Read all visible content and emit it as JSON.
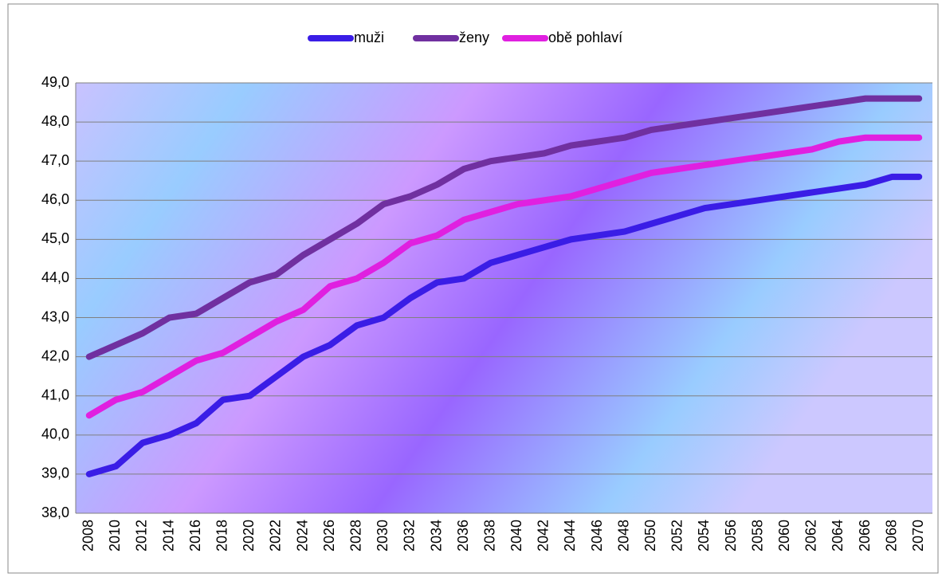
{
  "chart_data": {
    "type": "line",
    "categories": [
      "2008",
      "2010",
      "2012",
      "2014",
      "2016",
      "2018",
      "2020",
      "2022",
      "2024",
      "2026",
      "2028",
      "2030",
      "2032",
      "2034",
      "2036",
      "2038",
      "2040",
      "2042",
      "2044",
      "2046",
      "2048",
      "2050",
      "2052",
      "2054",
      "2056",
      "2058",
      "2060",
      "2062",
      "2064",
      "2066",
      "2068",
      "2070"
    ],
    "series": [
      {
        "name": "muži",
        "color": "#3a1de6",
        "values": [
          39.0,
          39.2,
          39.8,
          40.0,
          40.3,
          40.9,
          41.0,
          41.5,
          42.0,
          42.3,
          42.8,
          43.0,
          43.5,
          43.9,
          44.0,
          44.4,
          44.6,
          44.8,
          45.0,
          45.1,
          45.2,
          45.4,
          45.6,
          45.8,
          45.9,
          46.0,
          46.1,
          46.2,
          46.3,
          46.4,
          46.6,
          46.6
        ]
      },
      {
        "name": "ženy",
        "color": "#7030a0",
        "values": [
          42.0,
          42.3,
          42.6,
          43.0,
          43.1,
          43.5,
          43.9,
          44.1,
          44.6,
          45.0,
          45.4,
          45.9,
          46.1,
          46.4,
          46.8,
          47.0,
          47.1,
          47.2,
          47.4,
          47.5,
          47.6,
          47.8,
          47.9,
          48.0,
          48.1,
          48.2,
          48.3,
          48.4,
          48.5,
          48.6,
          48.6,
          48.6
        ]
      },
      {
        "name": "obě pohlaví",
        "color": "#e020e0",
        "values": [
          40.5,
          40.9,
          41.1,
          41.5,
          41.9,
          42.1,
          42.5,
          42.9,
          43.2,
          43.8,
          44.0,
          44.4,
          44.9,
          45.1,
          45.5,
          45.7,
          45.9,
          46.0,
          46.1,
          46.3,
          46.5,
          46.7,
          46.8,
          46.9,
          47.0,
          47.1,
          47.2,
          47.3,
          47.5,
          47.6,
          47.6,
          47.6
        ]
      }
    ],
    "ylim": [
      38,
      49
    ],
    "yticks": [
      {
        "value": 38,
        "label": "38,0"
      },
      {
        "value": 39,
        "label": "39,0"
      },
      {
        "value": 40,
        "label": "40,0"
      },
      {
        "value": 41,
        "label": "41,0"
      },
      {
        "value": 42,
        "label": "42,0"
      },
      {
        "value": 43,
        "label": "43,0"
      },
      {
        "value": 44,
        "label": "44,0"
      },
      {
        "value": 45,
        "label": "45,0"
      },
      {
        "value": 46,
        "label": "46,0"
      },
      {
        "value": 47,
        "label": "47,0"
      },
      {
        "value": 48,
        "label": "48,0"
      },
      {
        "value": 49,
        "label": "49,0"
      }
    ],
    "grid": true,
    "legend": "top"
  }
}
